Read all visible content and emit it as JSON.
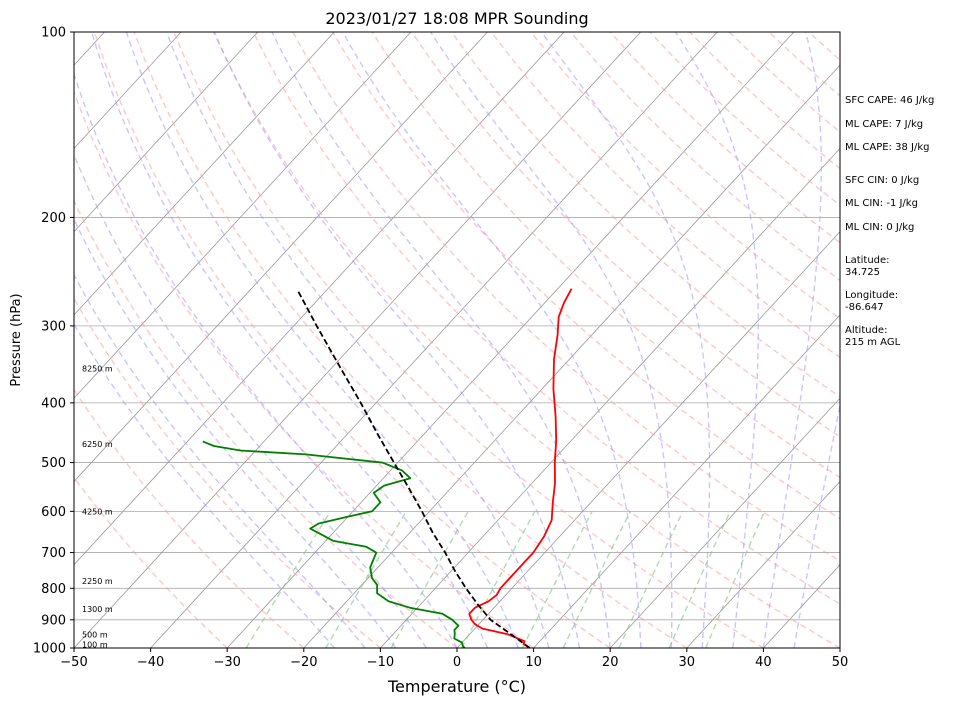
{
  "chart_data": {
    "type": "line",
    "subtype": "skew-t log-p sounding",
    "title": "2023/01/27 18:08 MPR Sounding",
    "xlabel": "Temperature (°C)",
    "ylabel": "Pressure (hPa)",
    "xlim": [
      -50,
      50
    ],
    "ylim": [
      1000,
      100
    ],
    "y_scale": "log",
    "x_ticks": [
      "−50",
      "−40",
      "−30",
      "−20",
      "−10",
      "0",
      "10",
      "20",
      "30",
      "40",
      "50"
    ],
    "y_ticks": [
      "100",
      "200",
      "300",
      "400",
      "500",
      "600",
      "700",
      "800",
      "900",
      "1000"
    ],
    "grid": true,
    "height_labels": [
      {
        "pressure": 990,
        "label": "100 m"
      },
      {
        "pressure": 955,
        "label": "500 m"
      },
      {
        "pressure": 868,
        "label": "1300 m"
      },
      {
        "pressure": 782,
        "label": "2250 m"
      },
      {
        "pressure": 603,
        "label": "4250 m"
      },
      {
        "pressure": 468,
        "label": "6250 m"
      },
      {
        "pressure": 353,
        "label": "8250 m"
      }
    ],
    "series": [
      {
        "color": "#ff0000",
        "points": [
          [
            1000,
            9.5
          ],
          [
            985,
            8.2
          ],
          [
            975,
            8.0
          ],
          [
            950,
            5.0
          ],
          [
            930,
            1.0
          ],
          [
            915,
            -0.5
          ],
          [
            900,
            -1.5
          ],
          [
            880,
            -2.5
          ],
          [
            860,
            -2.5
          ],
          [
            840,
            -1.5
          ],
          [
            820,
            -1.2
          ],
          [
            800,
            -1.5
          ],
          [
            770,
            -1.5
          ],
          [
            740,
            -1.5
          ],
          [
            700,
            -1.5
          ],
          [
            660,
            -2.0
          ],
          [
            620,
            -3.0
          ],
          [
            580,
            -5.0
          ],
          [
            540,
            -7.0
          ],
          [
            500,
            -9.5
          ],
          [
            460,
            -12.0
          ],
          [
            420,
            -15.0
          ],
          [
            380,
            -18.5
          ],
          [
            340,
            -22.0
          ],
          [
            310,
            -24.5
          ],
          [
            290,
            -26.5
          ],
          [
            275,
            -27.5
          ],
          [
            261,
            -28.2
          ]
        ]
      },
      {
        "color": "#008000",
        "points": [
          [
            1000,
            1.0
          ],
          [
            992,
            0.5
          ],
          [
            980,
            0.0
          ],
          [
            965,
            -1.5
          ],
          [
            948,
            -2.0
          ],
          [
            935,
            -2.5
          ],
          [
            920,
            -2.5
          ],
          [
            900,
            -4.0
          ],
          [
            880,
            -6.0
          ],
          [
            860,
            -11.0
          ],
          [
            840,
            -14.5
          ],
          [
            815,
            -17.0
          ],
          [
            790,
            -18.0
          ],
          [
            770,
            -19.5
          ],
          [
            740,
            -21.0
          ],
          [
            700,
            -22.0
          ],
          [
            685,
            -24.0
          ],
          [
            670,
            -29.0
          ],
          [
            640,
            -33.5
          ],
          [
            628,
            -33.0
          ],
          [
            612,
            -30.0
          ],
          [
            600,
            -27.5
          ],
          [
            580,
            -27.5
          ],
          [
            560,
            -29.5
          ],
          [
            545,
            -29.0
          ],
          [
            530,
            -26.5
          ],
          [
            515,
            -28.5
          ],
          [
            500,
            -32.0
          ],
          [
            485,
            -43.0
          ],
          [
            478,
            -52.0
          ],
          [
            470,
            -56.0
          ],
          [
            462,
            -58.0
          ]
        ]
      },
      {
        "color": "#000000",
        "dashed": true,
        "points": [
          [
            1000,
            9.5
          ],
          [
            950,
            5.4
          ],
          [
            900,
            1.0
          ],
          [
            850,
            -2.5
          ],
          [
            800,
            -6.0
          ],
          [
            750,
            -9.5
          ],
          [
            700,
            -13.0
          ],
          [
            650,
            -17.0
          ],
          [
            600,
            -21.0
          ],
          [
            550,
            -25.5
          ],
          [
            500,
            -30.5
          ],
          [
            450,
            -36.0
          ],
          [
            400,
            -42.0
          ],
          [
            350,
            -49.0
          ],
          [
            300,
            -57.0
          ],
          [
            264,
            -63.5
          ]
        ]
      }
    ],
    "annotations": {
      "sfc_cape": "SFC CAPE: 46 J/kg",
      "ml_cape_1": "ML CAPE: 7 J/kg",
      "ml_cape_2": "ML CAPE: 38 J/kg",
      "sfc_cin": "SFC CIN: 0 J/kg",
      "ml_cin_1": "ML CIN: -1 J/kg",
      "ml_cin_2": "ML CIN: 0 J/kg",
      "latitude": "Latitude:\n34.725",
      "longitude": "Longitude:\n-86.647",
      "altitude": "Altitude:\n215 m AGL"
    },
    "colors": {
      "temperature": "#ff0000",
      "dewpoint": "#008000",
      "parcel": "#000000",
      "dry_adiabats": "#ff9999",
      "moist_adiabats": "#9999ff",
      "mixing_ratio": "#80c080",
      "isotherms": "#999999"
    }
  }
}
